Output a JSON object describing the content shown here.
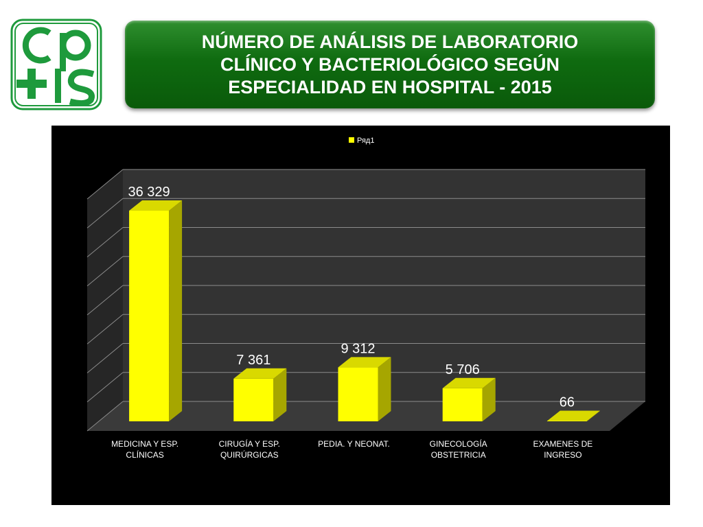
{
  "slide": {
    "title_lines": [
      "NÚMERO DE ANÁLISIS DE LABORATORIO",
      "CLÍNICO Y BACTERIOLÓGICO SEGÚN",
      "ESPECIALIDAD EN HOSPITAL - 2015"
    ],
    "logo_icon": "cpps-logo-icon",
    "colors": {
      "title_bg": "#0f6b10",
      "logo": "#1e9a3c",
      "bars": "#ffff00",
      "chart_bg": "#000000"
    }
  },
  "chart_data": {
    "type": "bar",
    "title": "",
    "xlabel": "",
    "ylabel": "",
    "legend": {
      "position": "top-center",
      "entries": [
        "Ряд1"
      ]
    },
    "grid": true,
    "ylim": [
      0,
      40000
    ],
    "y_ticks_shown": false,
    "categories": [
      [
        "MEDICINA Y ESP.",
        "CLÍNICAS"
      ],
      [
        "CIRUGÍA Y ESP.",
        "QUIRÚRGICAS"
      ],
      [
        "PEDIA. Y NEONAT."
      ],
      [
        "GINECOLOGÍA",
        "OBSTETRICIA"
      ],
      [
        "EXAMENES DE",
        "INGRESO"
      ]
    ],
    "series": [
      {
        "name": "Ряд1",
        "values": [
          36329,
          7361,
          9312,
          5706,
          66
        ],
        "labels": [
          "36 329",
          "7 361",
          "9 312",
          "5 706",
          "66"
        ]
      }
    ]
  }
}
